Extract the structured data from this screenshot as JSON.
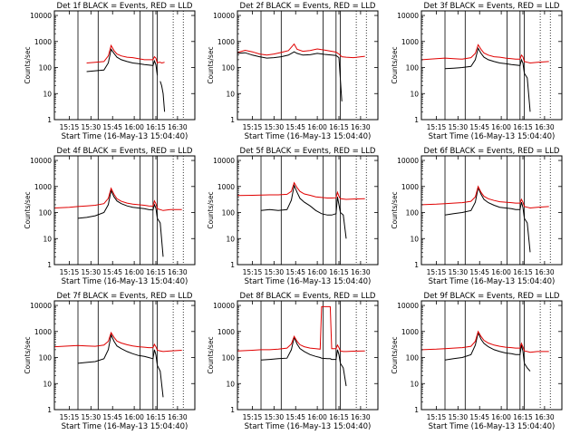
{
  "figure": {
    "colors": {
      "events": "#000000",
      "lld": "#e00000",
      "axes": "#000000"
    },
    "ylabel": "Counts/sec",
    "xlabel": "Start Time (16-May-13 15:04:40)",
    "xticks": [
      "15:15",
      "15:30",
      "15:45",
      "16:00",
      "16:15",
      "16:30"
    ],
    "yticks": [
      "1",
      "10",
      "100",
      "1000",
      "10000"
    ]
  },
  "chart_data": [
    {
      "type": "line",
      "title": "Det 1f BLACK = Events, RED = LLD",
      "xlabel": "Start Time (16-May-13 15:04:40)",
      "ylabel": "Counts/sec",
      "yscale": "log",
      "ylim": [
        1,
        15000
      ],
      "x": [
        "15:21",
        "15:27",
        "15:33",
        "15:39",
        "15:42",
        "15:44",
        "15:46",
        "15:48",
        "15:51",
        "15:55",
        "15:59",
        "16:03",
        "16:07",
        "16:10",
        "16:13",
        "16:14",
        "16:15",
        "16:16",
        "16:17",
        "16:18",
        "16:19",
        "16:20",
        "16:21"
      ],
      "series": [
        {
          "name": "Events",
          "color": "#000000",
          "values": [
            null,
            70,
            75,
            80,
            150,
            500,
            350,
            250,
            200,
            170,
            150,
            140,
            130,
            125,
            120,
            180,
            130,
            50,
            null,
            30,
            20,
            10,
            2
          ]
        },
        {
          "name": "LLD",
          "color": "#e00000",
          "values": [
            null,
            150,
            160,
            170,
            280,
            700,
            450,
            330,
            280,
            250,
            240,
            220,
            200,
            200,
            200,
            260,
            230,
            150,
            160,
            160,
            150,
            155,
            160
          ]
        }
      ],
      "vlines": [
        "15:21",
        "15:35",
        "16:04",
        "16:13",
        "16:16",
        "16:27",
        "16:34"
      ]
    },
    {
      "type": "line",
      "title": "Det 2f BLACK = Events, RED = LLD",
      "xlabel": "Start Time (16-May-13 15:04:40)",
      "ylabel": "Counts/sec",
      "yscale": "log",
      "ylim": [
        1,
        15000
      ],
      "x": [
        "15:05",
        "15:10",
        "15:15",
        "15:20",
        "15:25",
        "15:30",
        "15:35",
        "15:40",
        "15:44",
        "15:46",
        "15:50",
        "15:55",
        "16:00",
        "16:05",
        "16:10",
        "16:13",
        "16:15",
        "16:17",
        "16:20",
        "16:25",
        "16:33"
      ],
      "series": [
        {
          "name": "Events",
          "color": "#000000",
          "values": [
            350,
            370,
            300,
            260,
            230,
            240,
            260,
            300,
            400,
            350,
            300,
            310,
            350,
            320,
            300,
            290,
            240,
            5,
            null,
            null,
            null
          ]
        },
        {
          "name": "LLD",
          "color": "#e00000",
          "values": [
            380,
            460,
            400,
            330,
            300,
            330,
            380,
            450,
            800,
            500,
            420,
            450,
            520,
            470,
            420,
            390,
            330,
            260,
            250,
            240,
            270
          ]
        }
      ],
      "vlines": [
        "15:21",
        "15:35",
        "16:04",
        "16:13",
        "16:16",
        "16:27",
        "16:34"
      ]
    },
    {
      "type": "line",
      "title": "Det 3f BLACK = Events, RED = LLD",
      "xlabel": "Start Time (16-May-13 15:04:40)",
      "ylabel": "Counts/sec",
      "yscale": "log",
      "ylim": [
        1,
        15000
      ],
      "x": [
        "15:05",
        "15:15",
        "15:21",
        "15:27",
        "15:33",
        "15:39",
        "15:42",
        "15:44",
        "15:46",
        "15:48",
        "15:51",
        "15:55",
        "15:59",
        "16:03",
        "16:07",
        "16:10",
        "16:13",
        "16:14",
        "16:15",
        "16:16",
        "16:18",
        "16:20",
        "16:25",
        "16:33"
      ],
      "series": [
        {
          "name": "Events",
          "color": "#000000",
          "values": [
            null,
            null,
            90,
            95,
            100,
            110,
            200,
            550,
            350,
            250,
            200,
            170,
            150,
            140,
            130,
            125,
            120,
            200,
            150,
            60,
            40,
            2,
            null,
            null
          ]
        },
        {
          "name": "LLD",
          "color": "#e00000",
          "values": [
            200,
            220,
            230,
            220,
            210,
            240,
            350,
            750,
            500,
            360,
            300,
            260,
            250,
            230,
            220,
            210,
            210,
            300,
            260,
            170,
            160,
            150,
            160,
            170
          ]
        }
      ],
      "vlines": [
        "15:21",
        "15:35",
        "16:04",
        "16:13",
        "16:16",
        "16:27",
        "16:34"
      ]
    },
    {
      "type": "line",
      "title": "Det 4f BLACK = Events, RED = LLD",
      "xlabel": "Start Time (16-May-13 15:04:40)",
      "ylabel": "Counts/sec",
      "yscale": "log",
      "ylim": [
        1,
        15000
      ],
      "x": [
        "15:05",
        "15:15",
        "15:21",
        "15:27",
        "15:33",
        "15:39",
        "15:42",
        "15:44",
        "15:46",
        "15:48",
        "15:51",
        "15:55",
        "15:59",
        "16:03",
        "16:07",
        "16:10",
        "16:13",
        "16:14",
        "16:15",
        "16:16",
        "16:18",
        "16:20",
        "16:25",
        "16:33"
      ],
      "series": [
        {
          "name": "Events",
          "color": "#000000",
          "values": [
            null,
            null,
            60,
            65,
            75,
            100,
            200,
            700,
            400,
            280,
            220,
            180,
            160,
            150,
            140,
            130,
            125,
            200,
            150,
            60,
            40,
            2,
            null,
            null
          ]
        },
        {
          "name": "LLD",
          "color": "#e00000",
          "values": [
            150,
            160,
            170,
            180,
            190,
            220,
            350,
            850,
            500,
            340,
            270,
            230,
            210,
            200,
            190,
            180,
            175,
            280,
            220,
            140,
            130,
            120,
            130,
            130
          ]
        }
      ],
      "vlines": [
        "15:21",
        "15:35",
        "16:04",
        "16:13",
        "16:16",
        "16:27",
        "16:34"
      ]
    },
    {
      "type": "line",
      "title": "Det 5f BLACK = Events, RED = LLD",
      "xlabel": "Start Time (16-May-13 15:04:40)",
      "ylabel": "Counts/sec",
      "yscale": "log",
      "ylim": [
        1,
        15000
      ],
      "x": [
        "15:05",
        "15:15",
        "15:21",
        "15:27",
        "15:33",
        "15:39",
        "15:42",
        "15:44",
        "15:46",
        "15:48",
        "15:51",
        "15:55",
        "15:59",
        "16:03",
        "16:07",
        "16:10",
        "16:13",
        "16:14",
        "16:15",
        "16:16",
        "16:18",
        "16:20",
        "16:25",
        "16:33"
      ],
      "series": [
        {
          "name": "Events",
          "color": "#000000",
          "values": [
            null,
            null,
            120,
            130,
            120,
            130,
            300,
            1100,
            600,
            350,
            250,
            180,
            120,
            90,
            80,
            80,
            90,
            400,
            200,
            100,
            80,
            10,
            null,
            null
          ]
        },
        {
          "name": "LLD",
          "color": "#e00000",
          "values": [
            450,
            460,
            470,
            480,
            480,
            500,
            650,
            1400,
            900,
            650,
            520,
            460,
            400,
            380,
            360,
            360,
            370,
            600,
            420,
            340,
            330,
            320,
            330,
            340
          ]
        }
      ],
      "vlines": [
        "15:21",
        "15:35",
        "16:04",
        "16:13",
        "16:16",
        "16:27",
        "16:34"
      ]
    },
    {
      "type": "line",
      "title": "Det 6f BLACK = Events, RED = LLD",
      "xlabel": "Start Time (16-May-13 15:04:40)",
      "ylabel": "Counts/sec",
      "yscale": "log",
      "ylim": [
        1,
        15000
      ],
      "x": [
        "15:05",
        "15:15",
        "15:21",
        "15:27",
        "15:33",
        "15:39",
        "15:42",
        "15:44",
        "15:46",
        "15:48",
        "15:51",
        "15:55",
        "15:59",
        "16:03",
        "16:07",
        "16:10",
        "16:13",
        "16:14",
        "16:15",
        "16:16",
        "16:18",
        "16:20",
        "16:25",
        "16:33"
      ],
      "series": [
        {
          "name": "Events",
          "color": "#000000",
          "values": [
            null,
            null,
            80,
            90,
            100,
            120,
            250,
            900,
            500,
            320,
            240,
            190,
            160,
            150,
            140,
            130,
            130,
            250,
            160,
            60,
            40,
            3,
            null,
            null
          ]
        },
        {
          "name": "LLD",
          "color": "#e00000",
          "values": [
            200,
            210,
            220,
            230,
            240,
            270,
            400,
            1000,
            600,
            420,
            340,
            290,
            260,
            250,
            240,
            230,
            230,
            320,
            250,
            170,
            160,
            150,
            160,
            170
          ]
        }
      ],
      "vlines": [
        "15:21",
        "15:35",
        "16:04",
        "16:13",
        "16:16",
        "16:27",
        "16:34"
      ]
    },
    {
      "type": "line",
      "title": "Det 7f BLACK = Events, RED = LLD",
      "xlabel": "Start Time (16-May-13 15:04:40)",
      "ylabel": "Counts/sec",
      "yscale": "log",
      "ylim": [
        1,
        15000
      ],
      "x": [
        "15:05",
        "15:15",
        "15:21",
        "15:27",
        "15:33",
        "15:39",
        "15:42",
        "15:44",
        "15:46",
        "15:48",
        "15:51",
        "15:55",
        "15:59",
        "16:03",
        "16:07",
        "16:10",
        "16:13",
        "16:14",
        "16:15",
        "16:16",
        "16:18",
        "16:20",
        "16:25",
        "16:33"
      ],
      "series": [
        {
          "name": "Events",
          "color": "#000000",
          "values": [
            null,
            null,
            60,
            65,
            70,
            90,
            200,
            750,
            420,
            280,
            220,
            170,
            140,
            120,
            110,
            100,
            90,
            200,
            130,
            50,
            30,
            3,
            null,
            null
          ]
        },
        {
          "name": "LLD",
          "color": "#e00000",
          "values": [
            260,
            280,
            290,
            280,
            270,
            300,
            420,
            900,
            600,
            430,
            360,
            310,
            280,
            260,
            250,
            240,
            240,
            320,
            260,
            190,
            180,
            170,
            180,
            190
          ]
        }
      ],
      "vlines": [
        "15:21",
        "15:35",
        "16:04",
        "16:13",
        "16:16",
        "16:27",
        "16:34"
      ]
    },
    {
      "type": "line",
      "title": "Det 8f BLACK = Events, RED = LLD",
      "xlabel": "Start Time (16-May-13 15:04:40)",
      "ylabel": "Counts/sec",
      "yscale": "log",
      "ylim": [
        1,
        15000
      ],
      "x": [
        "15:05",
        "15:15",
        "15:21",
        "15:27",
        "15:33",
        "15:39",
        "15:42",
        "15:44",
        "15:46",
        "15:48",
        "15:51",
        "15:55",
        "15:59",
        "16:02",
        "16:03",
        "16:07",
        "16:09",
        "16:10",
        "16:13",
        "16:14",
        "16:15",
        "16:16",
        "16:18",
        "16:20",
        "16:25",
        "16:33"
      ],
      "series": [
        {
          "name": "Events",
          "color": "#000000",
          "values": [
            null,
            null,
            80,
            85,
            90,
            95,
            200,
            600,
            330,
            220,
            170,
            130,
            110,
            100,
            95,
            90,
            90,
            85,
            85,
            200,
            130,
            60,
            40,
            8,
            null,
            null
          ]
        },
        {
          "name": "LLD",
          "color": "#e00000",
          "values": [
            180,
            190,
            200,
            200,
            210,
            230,
            330,
            650,
            420,
            310,
            260,
            230,
            220,
            210,
            9000,
            9000,
            9000,
            220,
            220,
            300,
            240,
            180,
            170,
            170,
            175,
            180
          ]
        }
      ],
      "vlines": [
        "15:21",
        "15:35",
        "16:04",
        "16:13",
        "16:16",
        "16:27",
        "16:34"
      ]
    },
    {
      "type": "line",
      "title": "Det 9f BLACK = Events, RED = LLD",
      "xlabel": "Start Time (16-May-13 15:04:40)",
      "ylabel": "Counts/sec",
      "yscale": "log",
      "ylim": [
        1,
        15000
      ],
      "x": [
        "15:05",
        "15:15",
        "15:21",
        "15:27",
        "15:33",
        "15:39",
        "15:42",
        "15:44",
        "15:46",
        "15:48",
        "15:51",
        "15:55",
        "15:59",
        "16:03",
        "16:07",
        "16:10",
        "16:13",
        "16:14",
        "16:15",
        "16:16",
        "16:18",
        "16:20",
        "16:25",
        "16:33"
      ],
      "series": [
        {
          "name": "Events",
          "color": "#000000",
          "values": [
            null,
            null,
            80,
            90,
            100,
            130,
            300,
            900,
            500,
            350,
            260,
            200,
            170,
            150,
            140,
            130,
            130,
            300,
            180,
            60,
            40,
            30,
            null,
            null
          ]
        },
        {
          "name": "LLD",
          "color": "#e00000",
          "values": [
            200,
            210,
            220,
            230,
            240,
            270,
            420,
            1000,
            650,
            460,
            360,
            300,
            270,
            250,
            240,
            230,
            230,
            350,
            260,
            180,
            170,
            160,
            170,
            170
          ]
        }
      ],
      "vlines": [
        "15:21",
        "15:35",
        "16:04",
        "16:13",
        "16:16",
        "16:27",
        "16:34"
      ]
    }
  ]
}
